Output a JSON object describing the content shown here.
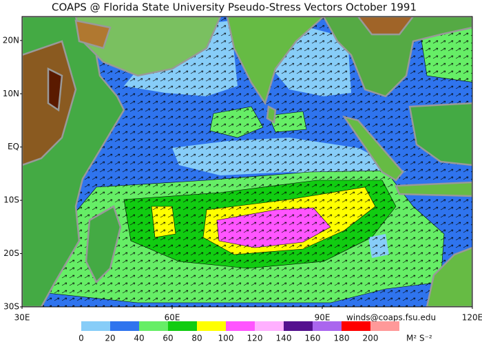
{
  "map": {
    "title": "COAPS @ Florida State University Pseudo-Stress Vectors  October 1991",
    "lonlim": [
      30,
      120
    ],
    "latlim": [
      -30,
      24.5
    ],
    "lat_labels": [
      {
        "value": 20,
        "label": "20N"
      },
      {
        "value": 10,
        "label": "10N"
      },
      {
        "value": 0,
        "label": "EQ"
      },
      {
        "value": -10,
        "label": "10S"
      },
      {
        "value": -20,
        "label": "20S"
      },
      {
        "value": -30,
        "label": "30S"
      }
    ],
    "lon_labels": [
      {
        "value": 30,
        "label": "30E"
      },
      {
        "value": 60,
        "label": "60E"
      },
      {
        "value": 90,
        "label": "90E"
      },
      {
        "value": 120,
        "label": "120E"
      }
    ],
    "credit": "winds@coaps.fsu.edu",
    "colorbar": {
      "ticks": [
        0,
        20,
        40,
        60,
        80,
        100,
        120,
        140,
        160,
        180,
        200
      ],
      "colors": [
        "#87cdf8",
        "#2f74ee",
        "#66ee66",
        "#11cc11",
        "#ffff00",
        "#ff55ff",
        "#ffb0ff",
        "#55118f",
        "#aa66ee",
        "#ff0000",
        "#ff9999"
      ],
      "units": "M² S⁻²"
    }
  }
}
